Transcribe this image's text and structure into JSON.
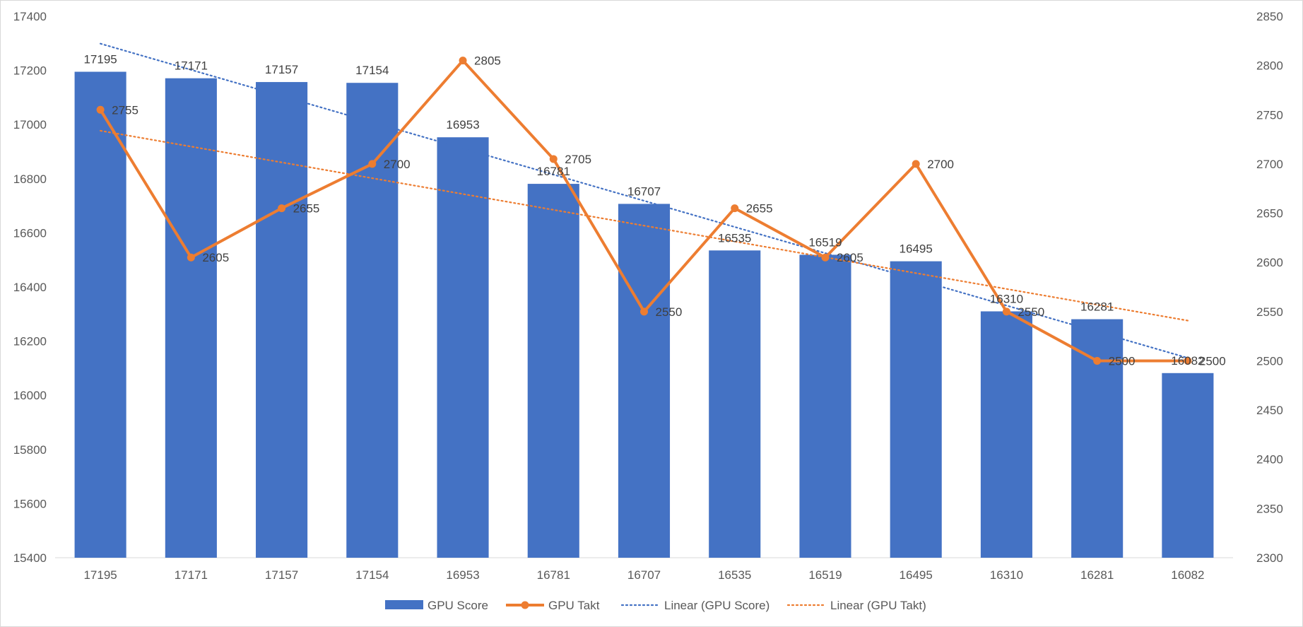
{
  "chart_data": {
    "type": "bar",
    "title": "",
    "categories": [
      "17195",
      "17171",
      "17157",
      "17154",
      "16953",
      "16781",
      "16707",
      "16535",
      "16519",
      "16495",
      "16310",
      "16281",
      "16082"
    ],
    "series": [
      {
        "name": "GPU Score",
        "type": "bar",
        "axis": "left",
        "color": "#4472C4",
        "values": [
          17195,
          17171,
          17157,
          17154,
          16953,
          16781,
          16707,
          16535,
          16519,
          16495,
          16310,
          16281,
          16082
        ]
      },
      {
        "name": "GPU Takt",
        "type": "line",
        "axis": "right",
        "color": "#ED7D31",
        "values": [
          2755,
          2605,
          2655,
          2700,
          2805,
          2705,
          2550,
          2655,
          2605,
          2700,
          2550,
          2500,
          2500
        ]
      },
      {
        "name": "Linear (GPU Score)",
        "type": "trendline",
        "axis": "left",
        "color": "#4472C4",
        "of": "GPU Score"
      },
      {
        "name": "Linear (GPU Takt)",
        "type": "trendline",
        "axis": "right",
        "color": "#ED7D31",
        "of": "GPU Takt"
      }
    ],
    "y_left": {
      "min": 15400,
      "max": 17400,
      "step": 200,
      "ticks": [
        "15400",
        "15600",
        "15800",
        "16000",
        "16200",
        "16400",
        "16600",
        "16800",
        "17000",
        "17200",
        "17400"
      ]
    },
    "y_right": {
      "min": 2300,
      "max": 2850,
      "step": 50,
      "ticks": [
        "2300",
        "2350",
        "2400",
        "2450",
        "2500",
        "2550",
        "2600",
        "2650",
        "2700",
        "2750",
        "2800",
        "2850"
      ]
    },
    "grid": false,
    "legend_position": "bottom",
    "data_labels": true
  }
}
